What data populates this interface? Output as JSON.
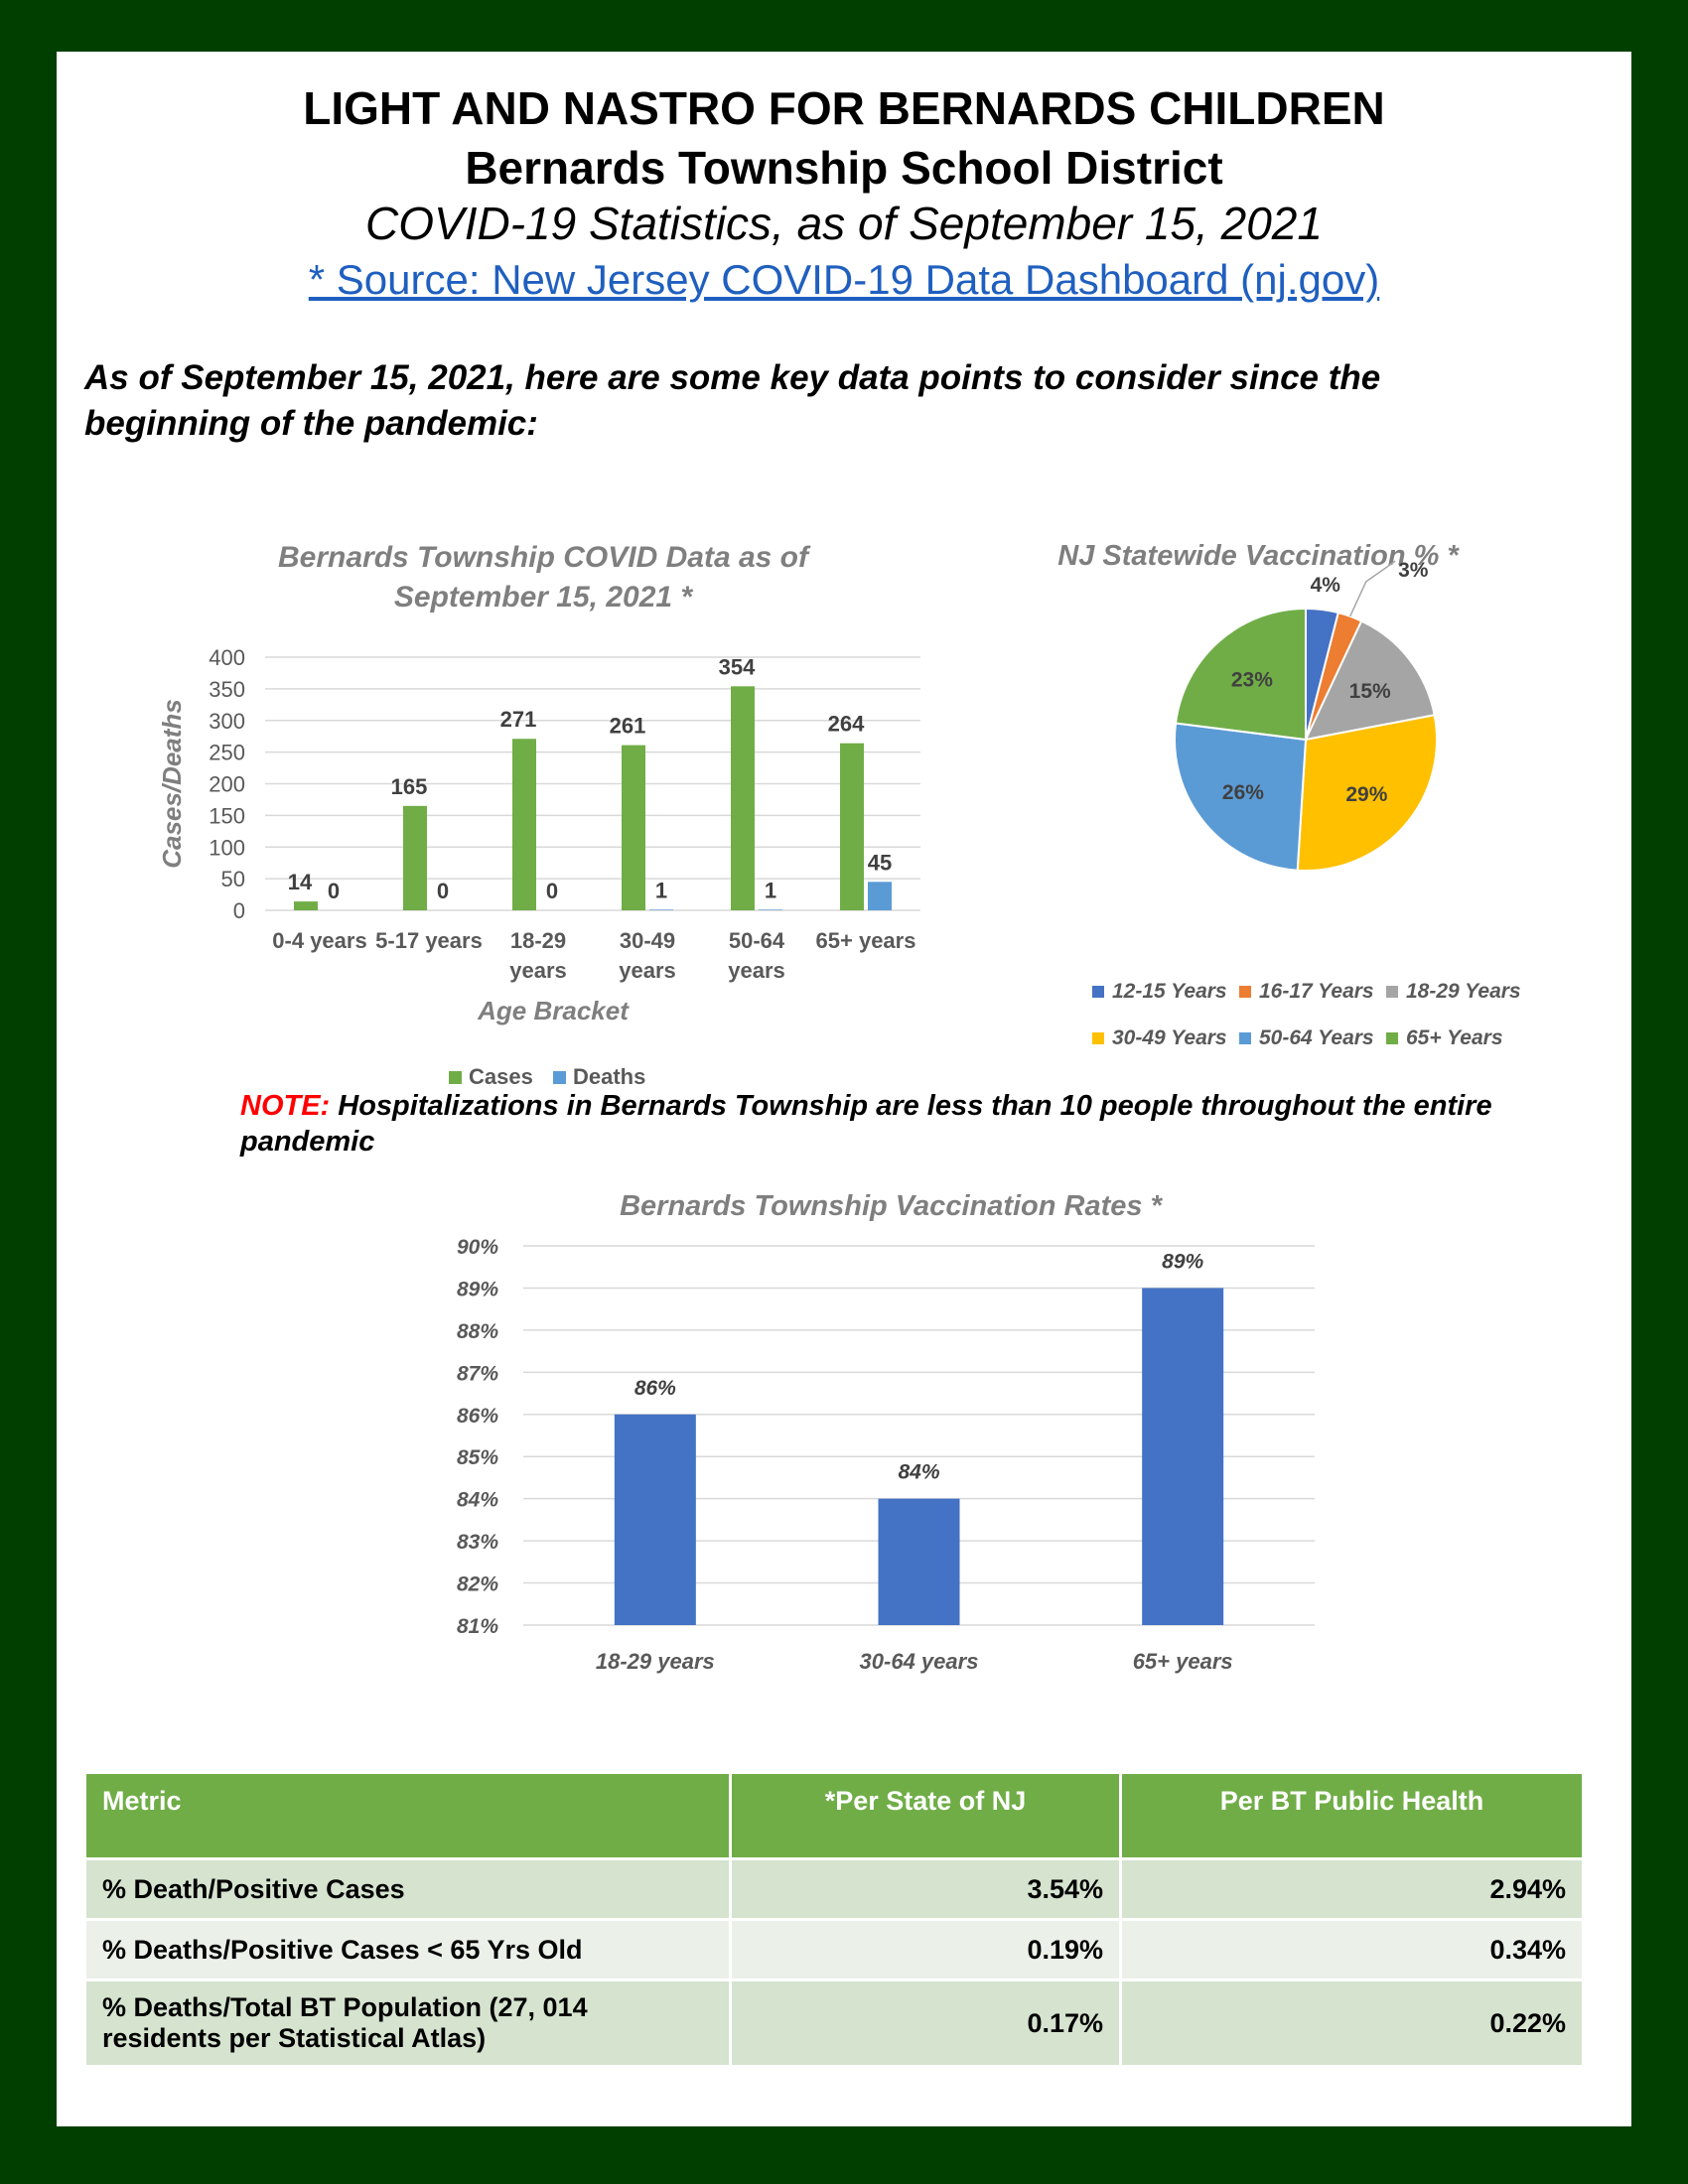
{
  "header": {
    "title": "LIGHT AND NASTRO FOR BERNARDS CHILDREN",
    "subtitle": "Bernards Township School District",
    "stats_line": "COVID-19 Statistics, as of September 15, 2021",
    "source_link": "* Source:  New Jersey COVID-19 Data Dashboard (nj.gov)"
  },
  "intro": "As of September 15, 2021, here are some key data points to consider since the beginning of the pandemic:",
  "note": {
    "prefix": "NOTE:",
    "text": "  Hospitalizations in Bernards Township are less than 10 people throughout the entire pandemic"
  },
  "chart_data": [
    {
      "type": "bar",
      "title": [
        "Bernards Township COVID Data as of",
        "September 15, 2021 *"
      ],
      "xlabel": "Age Bracket",
      "ylabel": "Cases/Deaths",
      "categories": [
        [
          "0-4 years"
        ],
        [
          "5-17 years"
        ],
        [
          "18-29",
          "years"
        ],
        [
          "30-49",
          "years"
        ],
        [
          "50-64",
          "years"
        ],
        [
          "65+ years"
        ]
      ],
      "series": [
        {
          "name": "Cases",
          "color": "#70ad47",
          "values": [
            14,
            165,
            271,
            261,
            354,
            264
          ]
        },
        {
          "name": "Deaths",
          "color": "#5b9bd5",
          "values": [
            0,
            0,
            0,
            1,
            1,
            45
          ]
        }
      ],
      "ylim": [
        0,
        400
      ],
      "yticks": [
        0,
        50,
        100,
        150,
        200,
        250,
        300,
        350,
        400
      ],
      "grid": true,
      "legend": "bottom"
    },
    {
      "type": "pie",
      "title": "NJ Statewide Vaccination % *",
      "slices": [
        {
          "label": "12-15 Years",
          "value": 4,
          "display": "4%",
          "color": "#4472c4"
        },
        {
          "label": "16-17 Years",
          "value": 3,
          "display": "3%",
          "color": "#ed7d31"
        },
        {
          "label": "18-29 Years",
          "value": 15,
          "display": "15%",
          "color": "#a5a5a5"
        },
        {
          "label": "30-49 Years",
          "value": 29,
          "display": "29%",
          "color": "#ffc000"
        },
        {
          "label": "50-64 Years",
          "value": 26,
          "display": "26%",
          "color": "#5b9bd5"
        },
        {
          "label": "65+ Years",
          "value": 23,
          "display": "23%",
          "color": "#70ad47"
        }
      ],
      "legend": "bottom"
    },
    {
      "type": "bar",
      "title": "Bernards Township Vaccination Rates *",
      "categories": [
        "18-29 years",
        "30-64 years",
        "65+ years"
      ],
      "series": [
        {
          "color": "#4472c4",
          "values": [
            86,
            84,
            89
          ],
          "labels": [
            "86%",
            "84%",
            "89%"
          ]
        }
      ],
      "ylim": [
        81,
        90
      ],
      "yticks": [
        "81%",
        "82%",
        "83%",
        "84%",
        "85%",
        "86%",
        "87%",
        "88%",
        "89%",
        "90%"
      ],
      "grid": true
    }
  ],
  "table": {
    "headers": [
      "Metric",
      "*Per State of NJ",
      "Per BT Public Health"
    ],
    "rows": [
      [
        "% Death/Positive Cases",
        "3.54%",
        "2.94%"
      ],
      [
        "% Deaths/Positive Cases < 65 Yrs Old",
        "0.19%",
        "0.34%"
      ],
      [
        "% Deaths/Total BT Population (27, 014 residents per Statistical Atlas)",
        "0.17%",
        "0.22%"
      ]
    ]
  }
}
